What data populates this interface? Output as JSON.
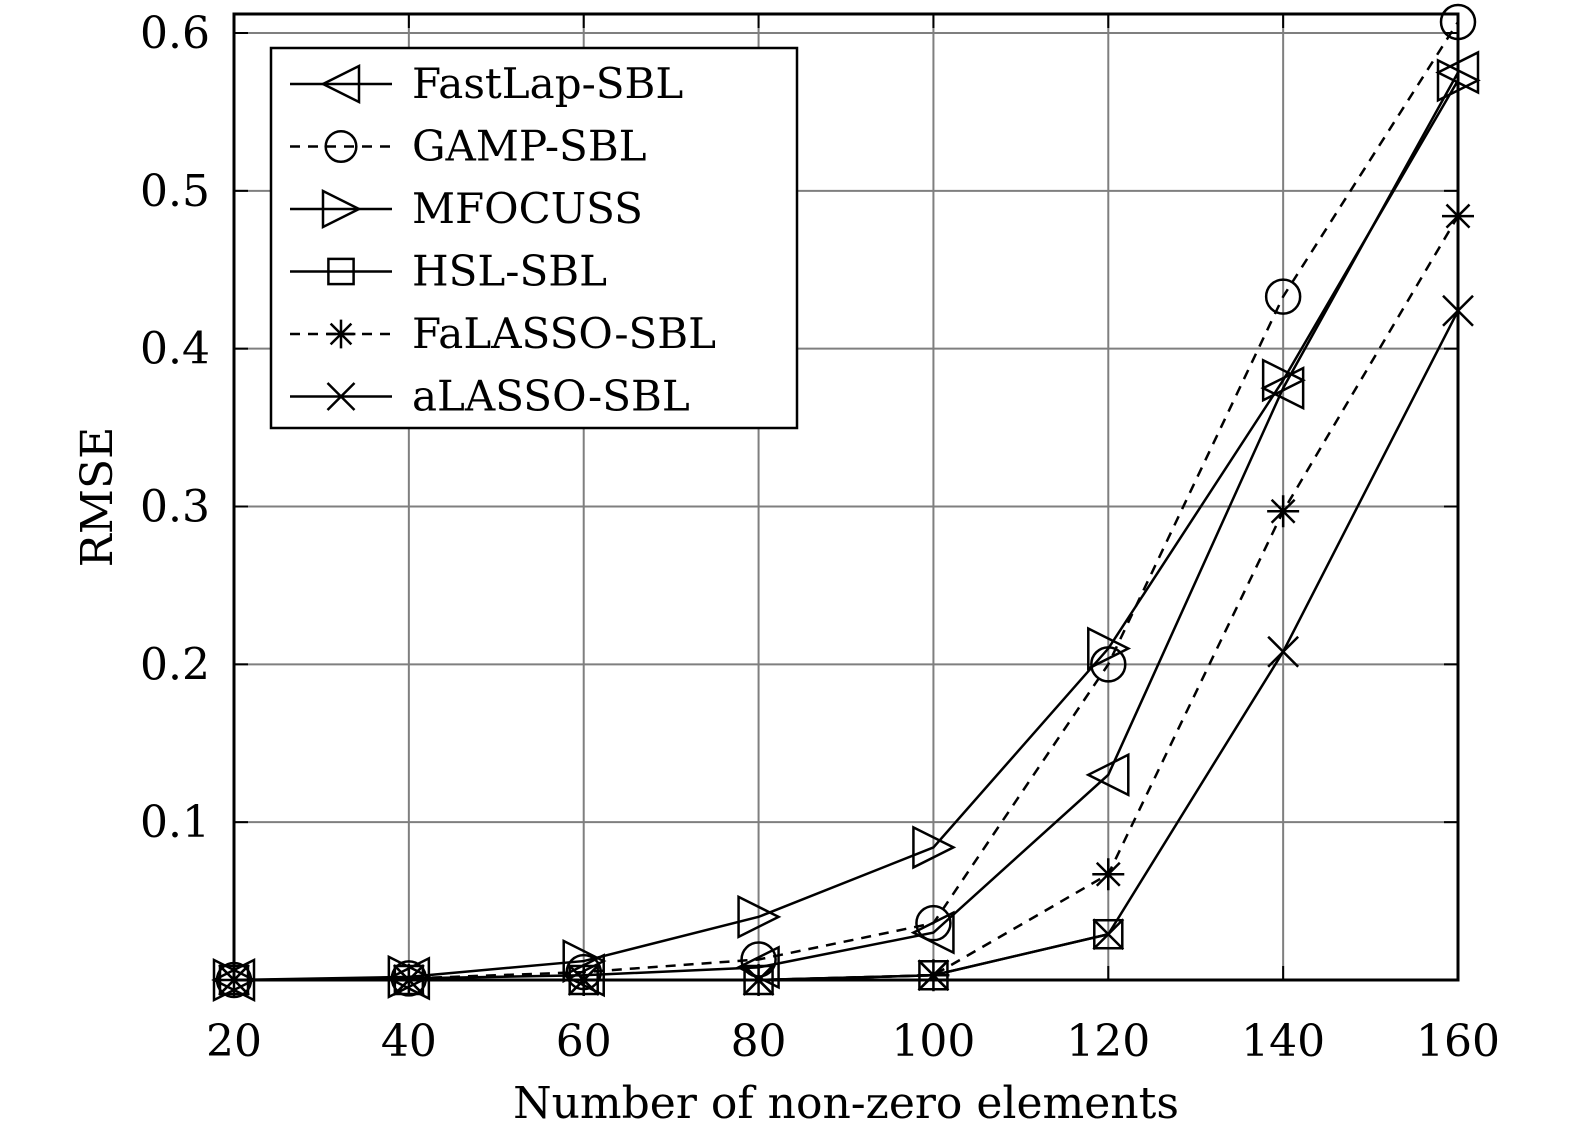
{
  "chart_data": {
    "type": "line",
    "title": "",
    "xlabel": "Number of non-zero elements",
    "ylabel": "RMSE",
    "x": [
      20,
      40,
      60,
      80,
      100,
      120,
      140,
      160
    ],
    "xlim": [
      20,
      160
    ],
    "ylim": [
      0,
      0.6
    ],
    "xticks": [
      20,
      40,
      60,
      80,
      100,
      120,
      140,
      160
    ],
    "yticks": [
      0.1,
      0.2,
      0.3,
      0.4,
      0.5,
      0.6
    ],
    "grid": true,
    "legend_position": "top-left",
    "series": [
      {
        "name": "FastLap-SBL",
        "marker": "triangle-left",
        "dash": "solid",
        "values": [
          0.0,
          0.001,
          0.003,
          0.008,
          0.03,
          0.13,
          0.375,
          0.575
        ]
      },
      {
        "name": "GAMP-SBL",
        "marker": "circle",
        "dash": "dashed",
        "values": [
          0.0,
          0.001,
          0.005,
          0.013,
          0.036,
          0.2,
          0.433,
          0.607
        ]
      },
      {
        "name": "MFOCUSS",
        "marker": "triangle-right",
        "dash": "solid",
        "values": [
          0.0,
          0.002,
          0.012,
          0.04,
          0.084,
          0.21,
          0.38,
          0.57
        ]
      },
      {
        "name": "HSL-SBL",
        "marker": "square",
        "dash": "solid",
        "values": [
          0.0,
          0.0,
          0.0,
          0.0,
          0.003,
          0.029,
          null,
          null
        ]
      },
      {
        "name": "FaLASSO-SBL",
        "marker": "asterisk",
        "dash": "dashed",
        "values": [
          0.0,
          0.0,
          0.0,
          0.0,
          0.003,
          0.067,
          0.297,
          0.484
        ]
      },
      {
        "name": "aLASSO-SBL",
        "marker": "x",
        "dash": "solid",
        "values": [
          0.0,
          0.0,
          0.0,
          0.0,
          0.003,
          0.029,
          0.208,
          0.424
        ]
      }
    ]
  }
}
